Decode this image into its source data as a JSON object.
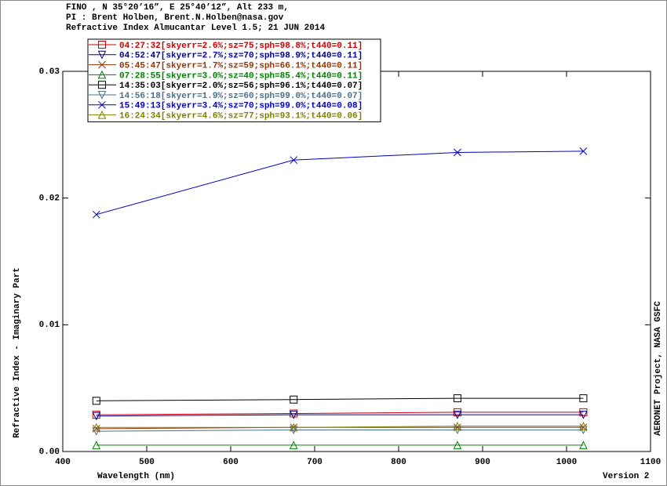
{
  "chart_data": {
    "type": "line",
    "title": [
      "FINO , N 35°20’16”, E 25°40’12”, Alt 233 m,",
      "PI : Brent Holben, Brent.N.Holben@nasa.gov",
      "Refractive Index Almucantar Level 1.5; 21 JUN 2014"
    ],
    "x_label": "Wavelength (nm)",
    "y_label": "Refractive Index - Imaginary Part",
    "side_note": "AERONET Project, NASA GSFC",
    "version": "Version 2",
    "x": [
      440,
      675,
      870,
      1020
    ],
    "xlim": [
      400,
      1100
    ],
    "xticks": [
      400,
      500,
      600,
      700,
      800,
      900,
      1000,
      1100
    ],
    "ylim": [
      0,
      0.03
    ],
    "yticks": [
      {
        "value": 0,
        "label": "0.00"
      },
      {
        "value": 0.01,
        "label": "0.01"
      },
      {
        "value": 0.02,
        "label": "0.02"
      },
      {
        "value": 0.03,
        "label": "0.03"
      }
    ],
    "legend": "upper left",
    "series": [
      {
        "name": "04:27:32[skyerr=2.6%;sz=75;sph=98.8%;t440=0.11]",
        "color": "#cc0000",
        "marker": "square",
        "values": [
          0.0029,
          0.003,
          0.0031,
          0.0031
        ]
      },
      {
        "name": "04:52:47[skyerr=2.7%;sz=70;sph=98.9%;t440=0.11]",
        "color": "#000099",
        "marker": "triangle-down",
        "values": [
          0.0028,
          0.0029,
          0.0029,
          0.0029
        ]
      },
      {
        "name": "05:45:47[skyerr=1.7%;sz=59;sph=66.1%;t440=0.11]",
        "color": "#993300",
        "marker": "x",
        "values": [
          0.0018,
          0.0019,
          0.0019,
          0.0019
        ]
      },
      {
        "name": "07:28:55[skyerr=3.0%;sz=40;sph=85.4%;t440=0.11]",
        "color": "#008000",
        "marker": "triangle-up",
        "values": [
          0.0005,
          0.0005,
          0.0005,
          0.0005
        ]
      },
      {
        "name": "14:35:03[skyerr=2.0%;sz=56;sph=96.1%;t440=0.07]",
        "color": "#000000",
        "marker": "square",
        "values": [
          0.004,
          0.0041,
          0.0042,
          0.0042
        ]
      },
      {
        "name": "14:56:18[skyerr=1.9%;sz=60;sph=99.0%;t440=0.07]",
        "color": "#4a708b",
        "marker": "triangle-down",
        "values": [
          0.0016,
          0.0017,
          0.0017,
          0.0017
        ]
      },
      {
        "name": "15:49:13[skyerr=3.4%;sz=70;sph=99.0%;t440=0.08]",
        "color": "#0000cc",
        "marker": "x",
        "values": [
          0.0187,
          0.023,
          0.0236,
          0.0237
        ]
      },
      {
        "name": "16:24:34[skyerr=4.6%;sz=77;sph=93.1%;t440=0.06]",
        "color": "#808000",
        "marker": "triangle-up",
        "values": [
          0.0019,
          0.0019,
          0.002,
          0.002
        ]
      }
    ]
  }
}
